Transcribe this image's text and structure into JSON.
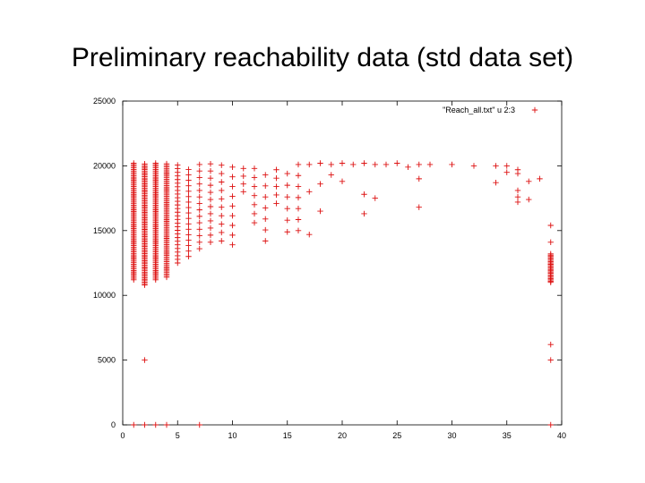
{
  "slide": {
    "title": "Preliminary reachability data (std data set)"
  },
  "chart_data": {
    "type": "scatter",
    "marker": "plus",
    "color": "#dd1111",
    "xlim": [
      0,
      40
    ],
    "ylim": [
      0,
      25000
    ],
    "xticks": [
      0,
      5,
      10,
      15,
      20,
      25,
      30,
      35,
      40
    ],
    "yticks": [
      0,
      5000,
      10000,
      15000,
      20000,
      25000
    ],
    "legend": {
      "label": "\"Reach_all.txt\" u 2:3",
      "placement": "top-right"
    },
    "series": [
      {
        "name": "\"Reach_all.txt\" u 2:3",
        "columns": [
          {
            "x": 1,
            "ymin": 11200,
            "ymax": 20200,
            "step": 120
          },
          {
            "x": 2,
            "ymin": 10800,
            "ymax": 20200,
            "step": 110
          },
          {
            "x": 3,
            "ymin": 11200,
            "ymax": 20200,
            "step": 120
          },
          {
            "x": 4,
            "ymin": 11400,
            "ymax": 20200,
            "step": 120
          },
          {
            "x": 5,
            "ymin": 12500,
            "ymax": 20100,
            "step": 280
          },
          {
            "x": 6,
            "ymin": 13000,
            "ymax": 20100,
            "step": 420
          },
          {
            "x": 7,
            "ymin": 13600,
            "ymax": 20200,
            "step": 500
          },
          {
            "x": 8,
            "ymin": 14100,
            "ymax": 20200,
            "step": 550
          },
          {
            "x": 9,
            "ymin": 14200,
            "ymax": 20200,
            "step": 650
          },
          {
            "x": 10,
            "ymin": 13900,
            "ymax": 20200,
            "step": 750
          },
          {
            "x": 11,
            "ymin": 18000,
            "ymax": 20200,
            "step": 600
          },
          {
            "x": 12,
            "ymin": 15600,
            "ymax": 20200,
            "step": 700
          },
          {
            "x": 13,
            "ymin": 14200,
            "ymax": 20100,
            "step": 850
          },
          {
            "x": 14,
            "ymin": 17100,
            "ymax": 20100,
            "step": 650
          },
          {
            "x": 15,
            "ymin": 14900,
            "ymax": 20200,
            "step": 900
          },
          {
            "x": 16,
            "ymin": 15000,
            "ymax": 20200,
            "step": 850
          }
        ],
        "points": [
          [
            2,
            5000
          ],
          [
            2,
            0
          ],
          [
            1,
            0
          ],
          [
            3,
            0
          ],
          [
            4,
            0
          ],
          [
            7,
            0
          ],
          [
            17,
            14700
          ],
          [
            17,
            18000
          ],
          [
            17,
            20100
          ],
          [
            18,
            16500
          ],
          [
            18,
            18600
          ],
          [
            18,
            20200
          ],
          [
            19,
            19300
          ],
          [
            19,
            20100
          ],
          [
            20,
            18800
          ],
          [
            20,
            20200
          ],
          [
            21,
            20100
          ],
          [
            22,
            16300
          ],
          [
            22,
            17800
          ],
          [
            22,
            20200
          ],
          [
            23,
            17500
          ],
          [
            23,
            20100
          ],
          [
            24,
            20100
          ],
          [
            25,
            20200
          ],
          [
            26,
            19900
          ],
          [
            27,
            16800
          ],
          [
            27,
            19000
          ],
          [
            27,
            20100
          ],
          [
            28,
            20100
          ],
          [
            30,
            20100
          ],
          [
            32,
            20000
          ],
          [
            34,
            18700
          ],
          [
            34,
            20000
          ],
          [
            35,
            19500
          ],
          [
            35,
            20000
          ],
          [
            36,
            17200
          ],
          [
            36,
            17600
          ],
          [
            36,
            18100
          ],
          [
            36,
            19400
          ],
          [
            36,
            19700
          ],
          [
            37,
            17400
          ],
          [
            37,
            18800
          ],
          [
            38,
            19000
          ],
          [
            39,
            0
          ],
          [
            39,
            5000
          ],
          [
            39,
            6200
          ],
          [
            39,
            11100
          ],
          [
            39,
            12400
          ],
          [
            39,
            14100
          ],
          [
            39,
            15400
          ]
        ],
        "dense_columns": [
          {
            "x": 39,
            "ymin": 11000,
            "ymax": 13200,
            "step": 100
          }
        ]
      }
    ]
  }
}
